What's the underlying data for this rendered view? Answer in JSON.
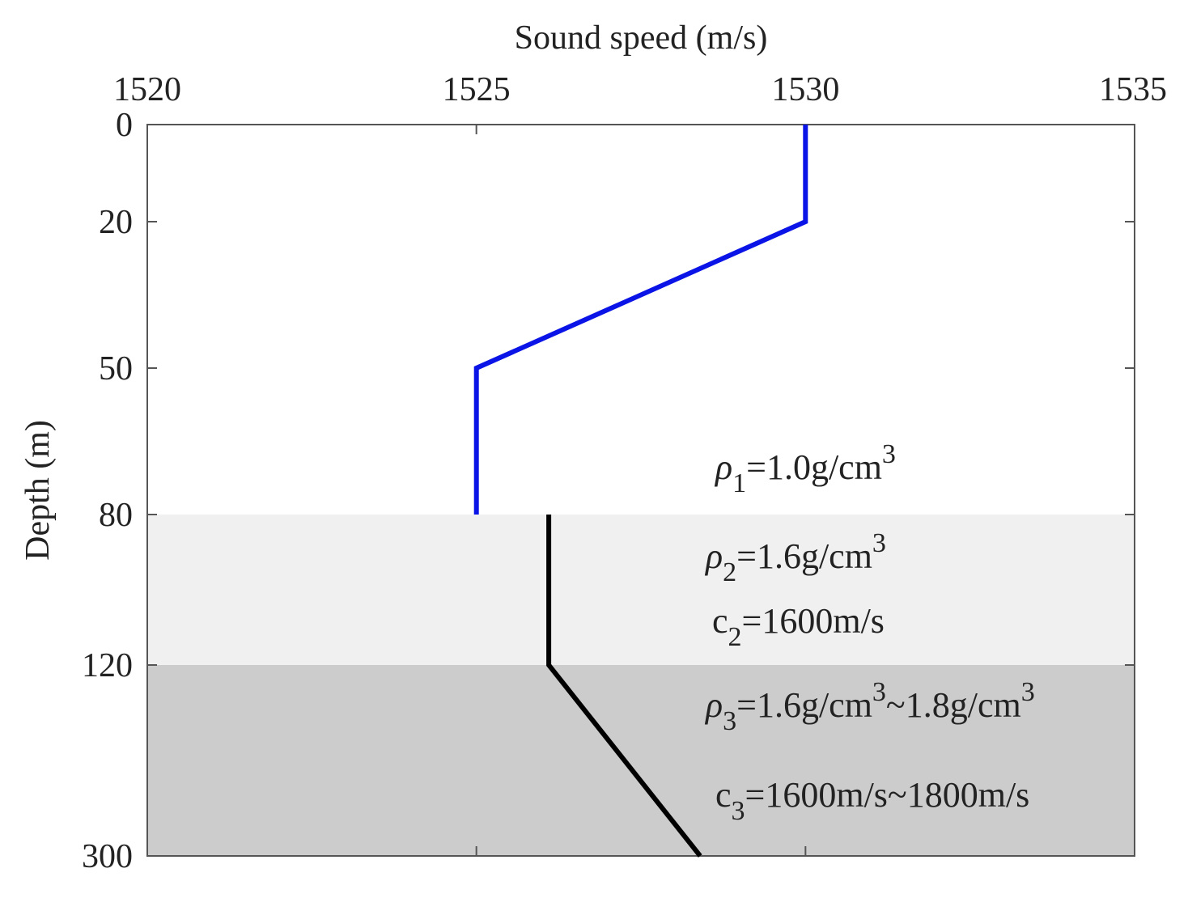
{
  "chart_data": {
    "type": "line",
    "xlabel": "Sound speed (m/s)",
    "ylabel": "Depth (m)",
    "x_axis_position": "top",
    "y_axis_reversed": true,
    "xlim": [
      1520,
      1535
    ],
    "ylim": [
      0,
      300
    ],
    "x_ticks": [
      1520,
      1525,
      1530,
      1535
    ],
    "y_ticks": [
      0,
      20,
      50,
      80,
      120,
      300
    ],
    "y_scale": "piecewise-linear",
    "y_tick_spacing_note": "tick labels are unevenly spaced",
    "grid": false,
    "legend": "none",
    "layers": [
      {
        "top": 80,
        "bottom": 120,
        "fill": "#f0f0f0"
      },
      {
        "top": 120,
        "bottom": 300,
        "fill": "#cccccc"
      }
    ],
    "series": [
      {
        "color": "#0b14e6",
        "points": [
          [
            1530,
            0
          ],
          [
            1530,
            20
          ],
          [
            1525,
            50
          ],
          [
            1525,
            80
          ]
        ]
      },
      {
        "color": "#000000",
        "points": [
          [
            1526.1,
            80
          ],
          [
            1526.1,
            120
          ],
          [
            1528.4,
            300
          ]
        ]
      }
    ],
    "annotations": [
      {
        "id": "rho1",
        "symbol": "ρ",
        "sub": "1",
        "text": "=1.0g/cm",
        "sup": "3",
        "tail": "",
        "tail_sup": ""
      },
      {
        "id": "rho2",
        "symbol": "ρ",
        "sub": "2",
        "text": "=1.6g/cm",
        "sup": "3",
        "tail": "",
        "tail_sup": ""
      },
      {
        "id": "c2",
        "symbol": "c",
        "sub": "2",
        "text": "=1600m/s",
        "sup": "",
        "tail": "",
        "tail_sup": ""
      },
      {
        "id": "rho3",
        "symbol": "ρ",
        "sub": "3",
        "text": "=1.6g/cm",
        "sup": "3",
        "tail": "~1.8g/cm",
        "tail_sup": "3"
      },
      {
        "id": "c3",
        "symbol": "c",
        "sub": "3",
        "text": "=1600m/s~1800m/s",
        "sup": "",
        "tail": "",
        "tail_sup": ""
      }
    ]
  }
}
